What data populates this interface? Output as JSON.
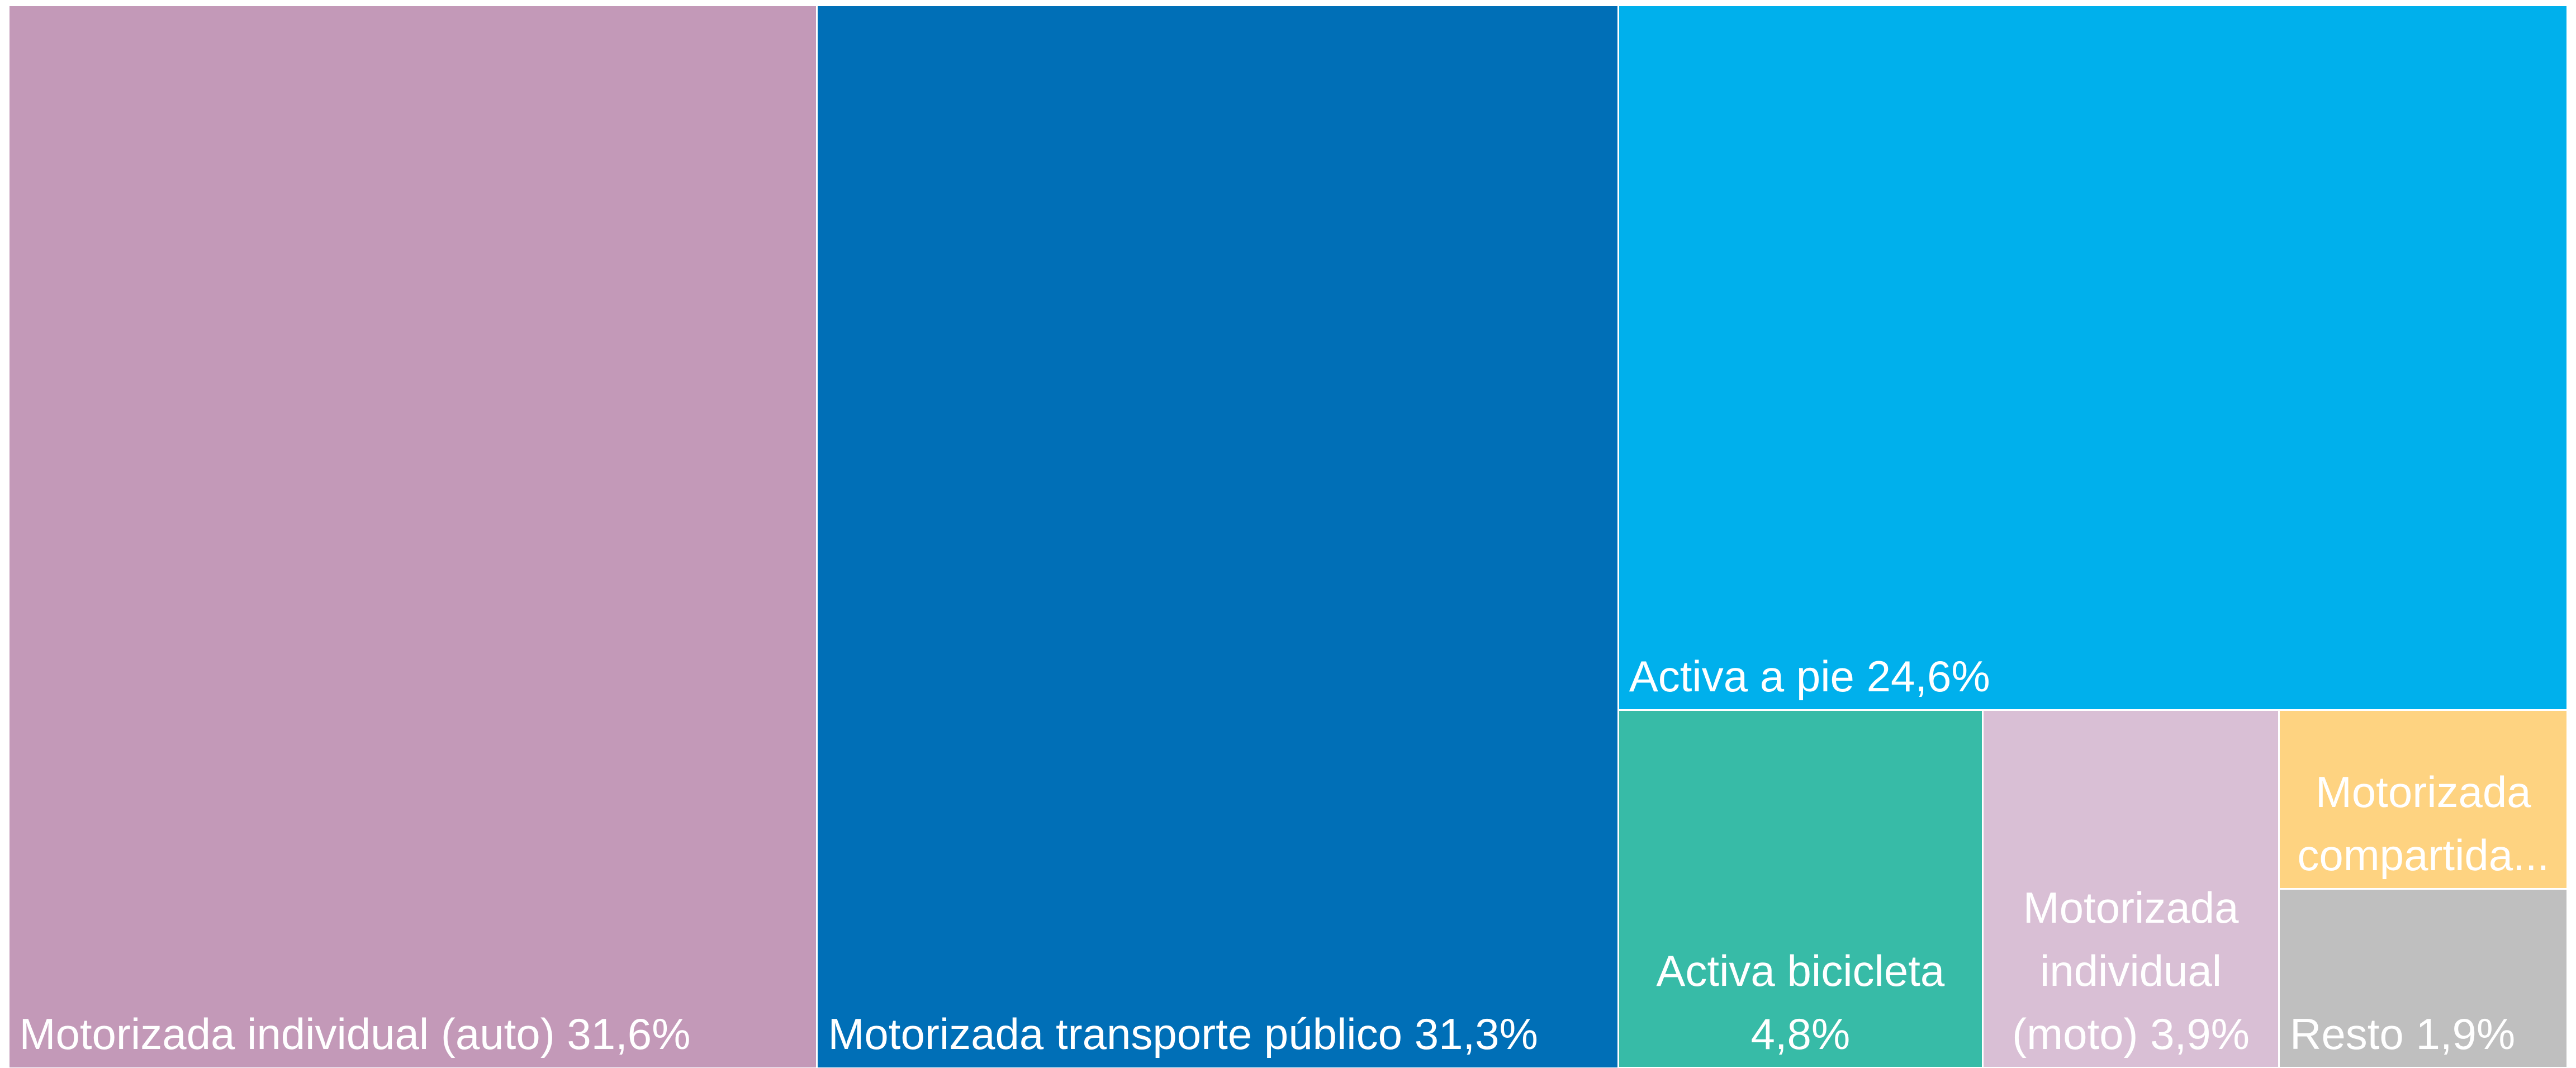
{
  "chart_data": {
    "type": "treemap",
    "categories": [
      "Motorizada individual (auto)",
      "Motorizada transporte público",
      "Activa a pie",
      "Activa bicicleta",
      "Motorizada individual (moto)",
      "Motorizada compartida...",
      "Resto"
    ],
    "values": [
      31.6,
      31.3,
      24.6,
      4.8,
      3.9,
      1.9,
      1.9
    ],
    "value_labels": [
      "31,6%",
      "31,3%",
      "24,6%",
      "4,8%",
      "3,9%",
      null,
      "1,9%"
    ],
    "colors": [
      "#c399b8",
      "#006fb7",
      "#00b0ec",
      "#37bba7",
      "#d9bfd5",
      "#fed381",
      "#bfbfbf"
    ]
  }
}
